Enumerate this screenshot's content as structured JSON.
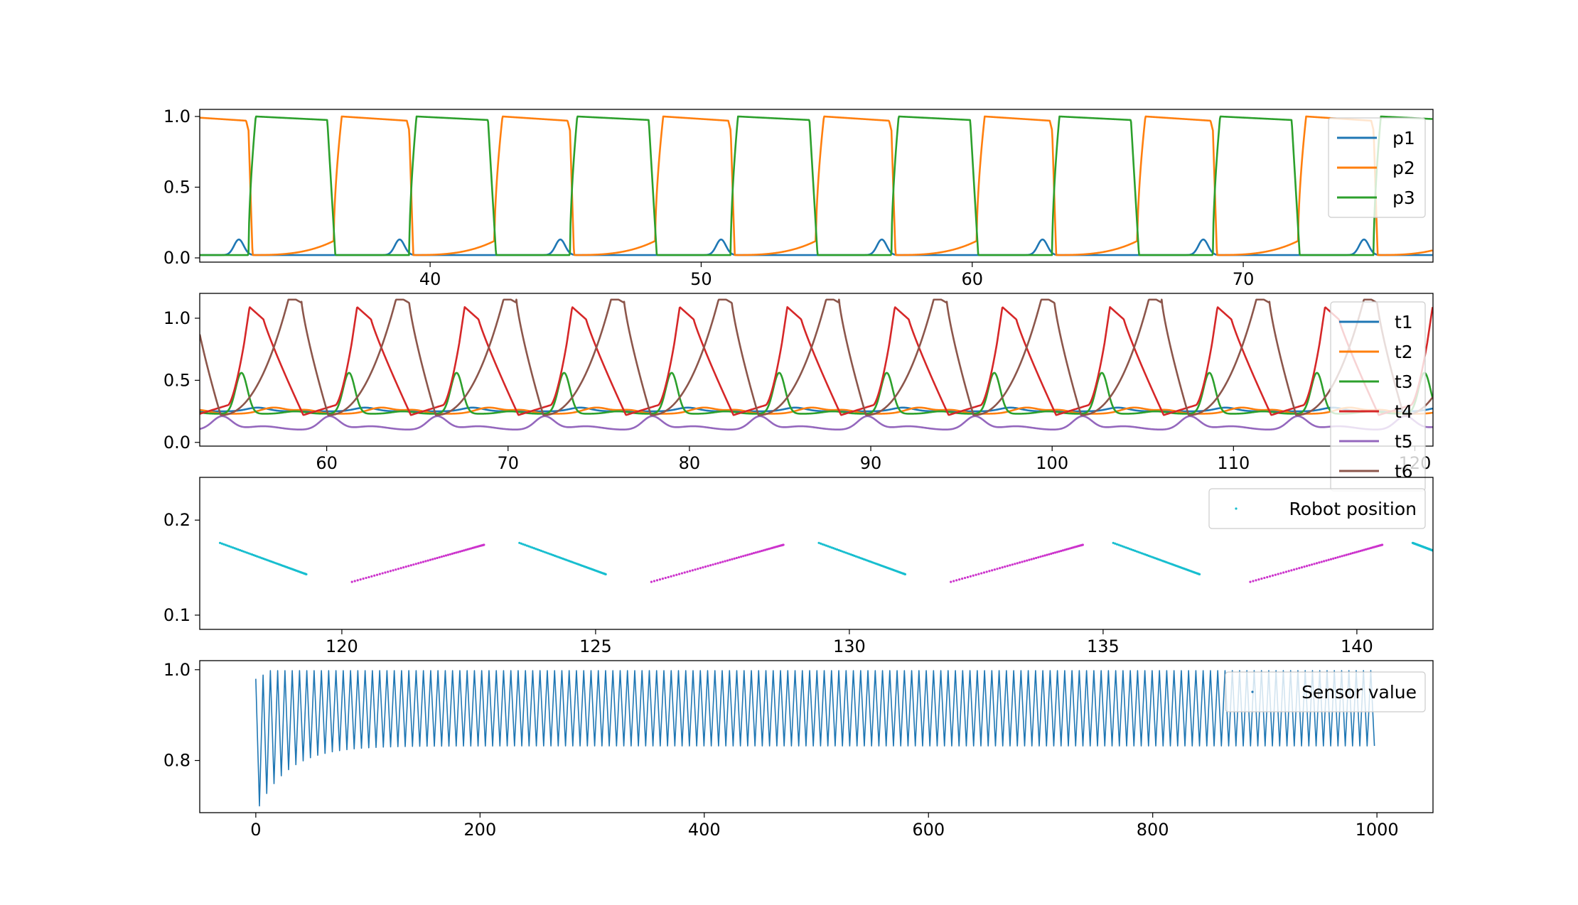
{
  "colors": {
    "C0": "#1f77b4",
    "C1": "#ff7f0e",
    "C2": "#2ca02c",
    "C3": "#d62728",
    "C4": "#9467bd",
    "C5": "#8c564b",
    "cyan": "#17becf",
    "magenta": "#cc33cc"
  },
  "chart_data": [
    {
      "type": "line",
      "xlim": [
        31.5,
        77
      ],
      "ylim": [
        -0.03,
        1.05
      ],
      "xticks": [
        40,
        50,
        60,
        70
      ],
      "yticks": [
        0.0,
        0.5,
        1.0
      ],
      "xtick_labels": [
        "40",
        "50",
        "60",
        "70"
      ],
      "ytick_labels": [
        "0.0",
        "0.5",
        "1.0"
      ],
      "legend_loc": "upper right",
      "period": 5.93,
      "phase": 33.3,
      "series": [
        {
          "name": "p1",
          "color": "#1f77b4",
          "shape": "flat low ~0.02 with bump to 0.13 before p3 rise"
        },
        {
          "name": "p2",
          "color": "#ff7f0e",
          "shape": "square-like oscillation 0.02-1.0"
        },
        {
          "name": "p3",
          "color": "#2ca02c",
          "shape": "square-like oscillation 0.02-1.0"
        }
      ]
    },
    {
      "type": "line",
      "xlim": [
        53,
        121
      ],
      "ylim": [
        -0.03,
        1.2
      ],
      "xticks": [
        60,
        70,
        80,
        90,
        100,
        110,
        120
      ],
      "yticks": [
        0.0,
        0.5,
        1.0
      ],
      "xtick_labels": [
        "60",
        "70",
        "80",
        "90",
        "100",
        "110",
        "120"
      ],
      "ytick_labels": [
        "0.0",
        "0.5",
        "1.0"
      ],
      "legend_loc": "upper right",
      "period": 5.93,
      "series": [
        {
          "name": "t1",
          "color": "#1f77b4",
          "range": [
            0.25,
            0.3
          ]
        },
        {
          "name": "t2",
          "color": "#ff7f0e",
          "range": [
            0.22,
            0.3
          ]
        },
        {
          "name": "t3",
          "color": "#2ca02c",
          "range": [
            0.22,
            0.56
          ]
        },
        {
          "name": "t4",
          "color": "#d62728",
          "range": [
            0.22,
            1.09
          ]
        },
        {
          "name": "t5",
          "color": "#9467bd",
          "range": [
            0.09,
            0.21
          ]
        },
        {
          "name": "t6",
          "color": "#8c564b",
          "range": [
            0.2,
            1.15
          ]
        }
      ]
    },
    {
      "type": "scatter",
      "xlim": [
        117.2,
        141.5
      ],
      "ylim": [
        0.085,
        0.245
      ],
      "xticks": [
        120,
        125,
        130,
        135,
        140
      ],
      "yticks": [
        0.1,
        0.2
      ],
      "xtick_labels": [
        "120",
        "125",
        "130",
        "135",
        "140"
      ],
      "ytick_labels": [
        "0.1",
        "0.2"
      ],
      "legend_loc": "upper right",
      "series": [
        {
          "name": "Robot position",
          "color": "#17becf",
          "segments": [
            [
              117.6,
              0.176,
              119.3,
              0.143
            ],
            [
              123.5,
              0.176,
              125.2,
              0.143
            ],
            [
              129.4,
              0.176,
              131.1,
              0.143
            ],
            [
              135.2,
              0.176,
              136.9,
              0.143
            ],
            [
              141.1,
              0.176,
              141.5,
              0.168
            ]
          ]
        },
        {
          "name": "",
          "color": "#cc33cc",
          "segments": [
            [
              120.2,
              0.135,
              122.8,
              0.174
            ],
            [
              126.1,
              0.135,
              128.7,
              0.174
            ],
            [
              132.0,
              0.135,
              134.6,
              0.174
            ],
            [
              137.9,
              0.135,
              140.5,
              0.174
            ]
          ]
        }
      ]
    },
    {
      "type": "scatter",
      "xlim": [
        -50,
        1050
      ],
      "ylim": [
        0.685,
        1.02
      ],
      "xticks": [
        0,
        200,
        400,
        600,
        800,
        1000
      ],
      "yticks": [
        0.8,
        1.0
      ],
      "xtick_labels": [
        "0",
        "200",
        "400",
        "600",
        "800",
        "1000"
      ],
      "ytick_labels": [
        "0.8",
        "1.0"
      ],
      "legend_loc": "upper right",
      "series": [
        {
          "name": "Sensor value",
          "color": "#1f77b4",
          "x_range": [
            0,
            1000
          ],
          "upper": 0.998,
          "lower_final": 0.832,
          "lower_initial": 0.7
        }
      ]
    }
  ]
}
